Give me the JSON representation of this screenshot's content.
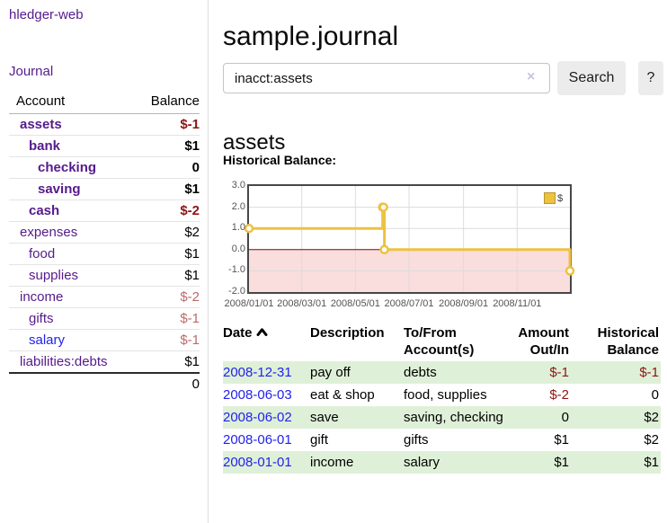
{
  "app": {
    "brand": "hledger-web"
  },
  "sidebar": {
    "journal_link": "Journal",
    "accounts": {
      "headers": {
        "account": "Account",
        "balance": "Balance"
      },
      "rows": [
        {
          "account": "assets",
          "balance": "$-1",
          "level": 1,
          "bold": true,
          "link_state": "visited"
        },
        {
          "account": "bank",
          "balance": "$1",
          "level": 2,
          "bold": true,
          "link_state": "visited"
        },
        {
          "account": "checking",
          "balance": "0",
          "level": 3,
          "bold": true,
          "link_state": "visited"
        },
        {
          "account": "saving",
          "balance": "$1",
          "level": 3,
          "bold": true,
          "link_state": "visited"
        },
        {
          "account": "cash",
          "balance": "$-2",
          "level": 2,
          "bold": true,
          "link_state": "visited"
        },
        {
          "account": "expenses",
          "balance": "$2",
          "level": 1,
          "bold": false,
          "link_state": "visited"
        },
        {
          "account": "food",
          "balance": "$1",
          "level": 2,
          "bold": false,
          "link_state": "visited"
        },
        {
          "account": "supplies",
          "balance": "$1",
          "level": 2,
          "bold": false,
          "link_state": "visited"
        },
        {
          "account": "income",
          "balance": "$-2",
          "level": 1,
          "bold": false,
          "link_state": "visited"
        },
        {
          "account": "gifts",
          "balance": "$-1",
          "level": 2,
          "bold": false,
          "link_state": "visited"
        },
        {
          "account": "salary",
          "balance": "$-1",
          "level": 2,
          "bold": false,
          "link_state": "unvisited"
        },
        {
          "account": "liabilities:debts",
          "balance": "$1",
          "level": 1,
          "bold": false,
          "link_state": "visited"
        }
      ],
      "total": "0"
    }
  },
  "main": {
    "title": "sample.journal",
    "search": {
      "value": "inacct:assets",
      "clear_icon": "×",
      "search_button": "Search",
      "help_button": "?"
    },
    "account_heading": "assets",
    "chart_heading": "Historical Balance:"
  },
  "chart_data": {
    "type": "line",
    "step": true,
    "title": "Historical Balance of assets",
    "x_range": [
      "2008-01-01",
      "2008-12-31"
    ],
    "y_range": [
      -2,
      3
    ],
    "y_ticks": [
      {
        "value": 3,
        "label": "3.0"
      },
      {
        "value": 2,
        "label": "2.0"
      },
      {
        "value": 1,
        "label": "1.0"
      },
      {
        "value": 0,
        "label": "0.0"
      },
      {
        "value": -1,
        "label": "-1.0"
      },
      {
        "value": -2,
        "label": "-2.0"
      }
    ],
    "x_ticks": [
      {
        "date": "2008-01-01",
        "label": "2008/01/01"
      },
      {
        "date": "2008-03-01",
        "label": "2008/03/01"
      },
      {
        "date": "2008-05-01",
        "label": "2008/05/01"
      },
      {
        "date": "2008-07-01",
        "label": "2008/07/01"
      },
      {
        "date": "2008-09-01",
        "label": "2008/09/01"
      },
      {
        "date": "2008-11-01",
        "label": "2008/11/01"
      }
    ],
    "series": [
      {
        "name": "$",
        "color": "#edc240",
        "points": [
          [
            "2008-01-01",
            1
          ],
          [
            "2008-06-01",
            2
          ],
          [
            "2008-06-02",
            2
          ],
          [
            "2008-06-03",
            0
          ],
          [
            "2008-12-31",
            -1
          ]
        ]
      }
    ],
    "legend": [
      {
        "label": "$",
        "color": "#edc240"
      }
    ],
    "legend_position": "top-right",
    "grid": true,
    "negative_region_fill": "#fadddd",
    "zero_line_color": "#8b0000",
    "grid_color": "#dcdcdc"
  },
  "register": {
    "columns": [
      {
        "label": "Date",
        "sorted": "ascending"
      },
      {
        "label": "Description"
      },
      {
        "label": "To/From Account(s)"
      },
      {
        "label": "Amount Out/In"
      },
      {
        "label": "Historical Balance"
      }
    ],
    "rows": [
      {
        "date": "2008-12-31",
        "description": "pay off",
        "accounts": "debts",
        "amount": "$-1",
        "balance": "$-1"
      },
      {
        "date": "2008-06-03",
        "description": "eat & shop",
        "accounts": "food, supplies",
        "amount": "$-2",
        "balance": "0"
      },
      {
        "date": "2008-06-02",
        "description": "save",
        "accounts": "saving, checking",
        "amount": "0",
        "balance": "$2"
      },
      {
        "date": "2008-06-01",
        "description": "gift",
        "accounts": "gifts",
        "amount": "$1",
        "balance": "$2"
      },
      {
        "date": "2008-01-01",
        "description": "income",
        "accounts": "salary",
        "amount": "$1",
        "balance": "$1"
      }
    ]
  }
}
